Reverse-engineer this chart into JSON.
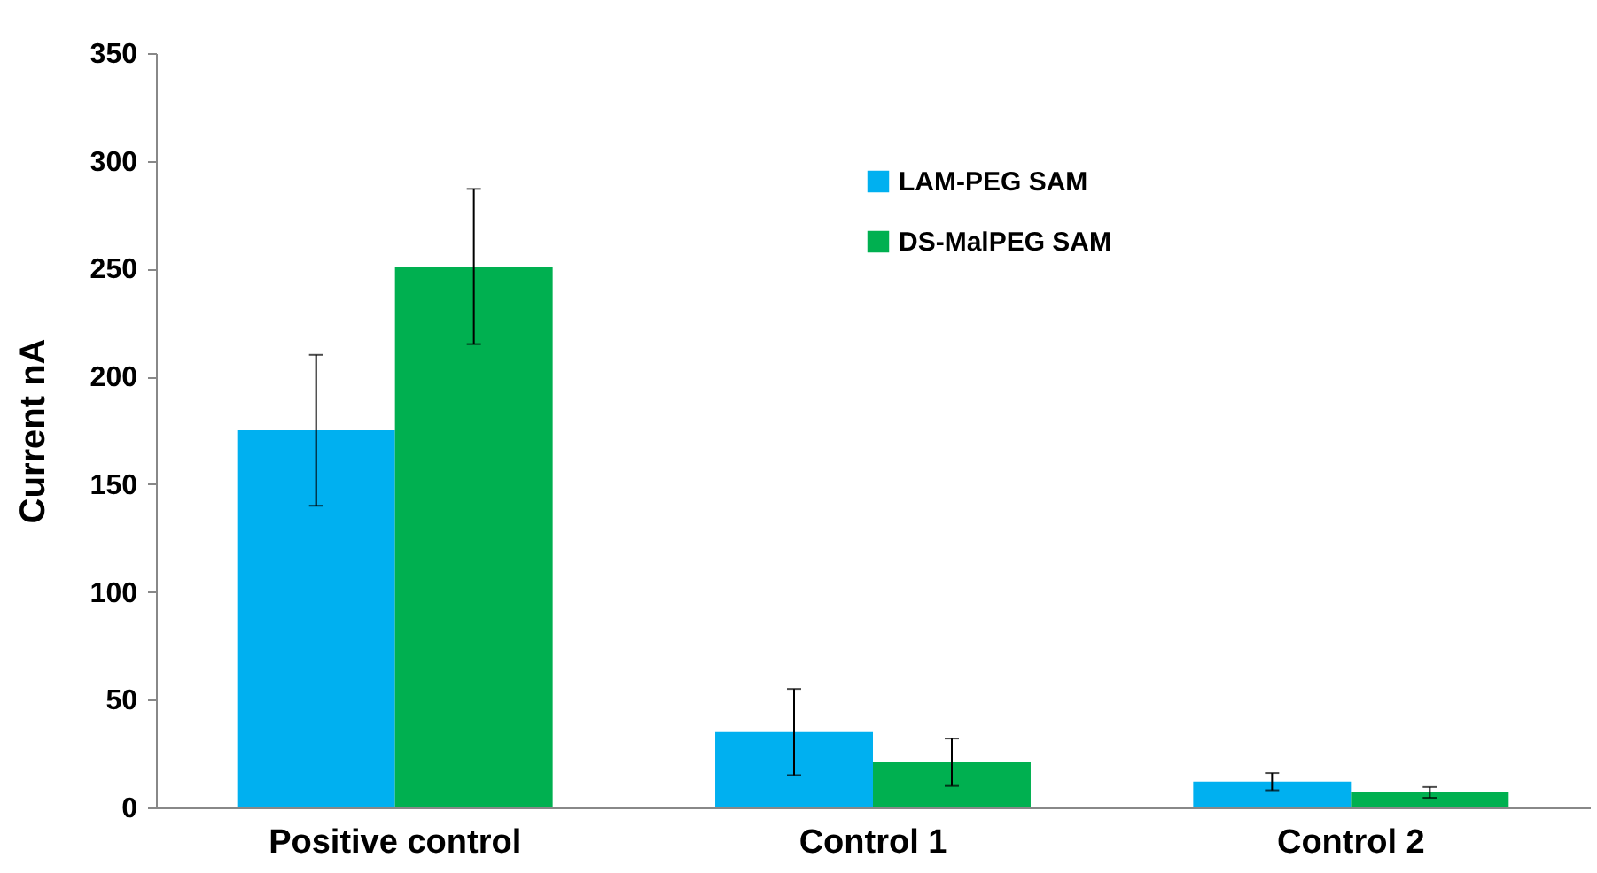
{
  "chart_data": {
    "type": "bar",
    "ylabel": "Current nA",
    "categories": [
      "Positive control",
      "Control 1",
      "Control 2"
    ],
    "series": [
      {
        "name": "LAM-PEG SAM",
        "color": "#00b0f0",
        "values": [
          175,
          35,
          12
        ],
        "errors": [
          35,
          20,
          4
        ]
      },
      {
        "name": "DS-MalPEG SAM",
        "color": "#00b050",
        "values": [
          251,
          21,
          7
        ],
        "errors": [
          36,
          11,
          2.5
        ]
      }
    ],
    "ylim": [
      0,
      350
    ],
    "yticks": [
      0,
      50,
      100,
      150,
      200,
      250,
      300,
      350
    ],
    "grid": false,
    "legend": "top right"
  }
}
